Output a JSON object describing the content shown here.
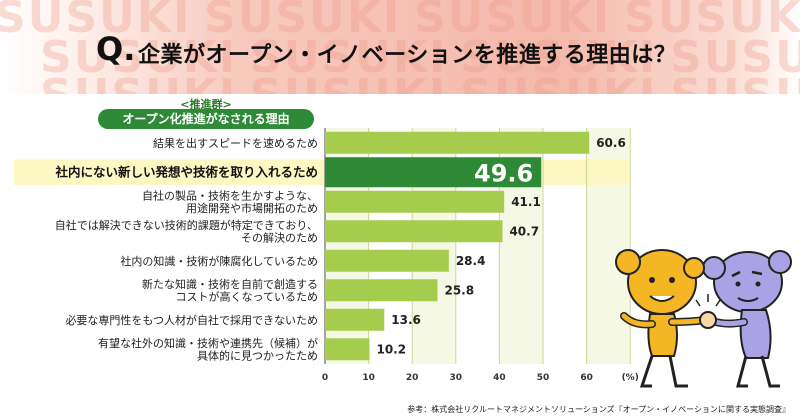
{
  "header": {
    "q_mark": "Q.",
    "question": "企業がオープン・イノベーションを推進する理由は？",
    "background_letters": "SUSUKI"
  },
  "group": {
    "sub_label": "<推進群>",
    "title": "オープン化推進がなされる理由"
  },
  "chart_data": {
    "type": "bar",
    "orientation": "horizontal",
    "categories": [
      [
        "結果を出すスピードを速めるため"
      ],
      [
        "社内にない新しい発想や技術を取り入れるため"
      ],
      [
        "自社の製品・技術を生かすような、",
        "用途開発や市場開拓のため"
      ],
      [
        "自社では解決できない技術的課題が特定できており、",
        "その解決のため"
      ],
      [
        "社内の知識・技術が陳腐化しているため"
      ],
      [
        "新たな知識・技術を自前で創造する",
        "コストが高くなっているため"
      ],
      [
        "必要な専門性をもつ人材が自社で採用できないため"
      ],
      [
        "有望な社外の知識・技術や連携先（候補）が",
        "具体的に見つかったため"
      ]
    ],
    "values": [
      60.6,
      49.6,
      41.1,
      40.7,
      28.4,
      25.8,
      13.6,
      10.2
    ],
    "value_labels": [
      "60.6",
      "49.6",
      "41.1",
      "40.7",
      "28.4",
      "25.8",
      "13.6",
      "10.2"
    ],
    "highlight_index": 1,
    "xlim": [
      0,
      70
    ],
    "xticks": [
      "0",
      "10",
      "20",
      "30",
      "40",
      "50",
      "60",
      "(%)"
    ],
    "xtick_values": [
      0,
      10,
      20,
      30,
      40,
      50,
      60,
      70
    ],
    "colors": {
      "bar": "#a6cc4e",
      "bar_highlight": "#2f8a37",
      "band": "#f5f8e4",
      "band_alt": "#ffffff",
      "highlight_row": "#fdf7c3",
      "grid": "#c9d89a"
    }
  },
  "source": "参考：株式会社リクルートマネジメントソリューションズ『オープン・イノベーションに関する実態調査』",
  "illustration": {
    "icons": [
      "orange-character-icon",
      "purple-character-icon",
      "handshake-icon"
    ]
  }
}
